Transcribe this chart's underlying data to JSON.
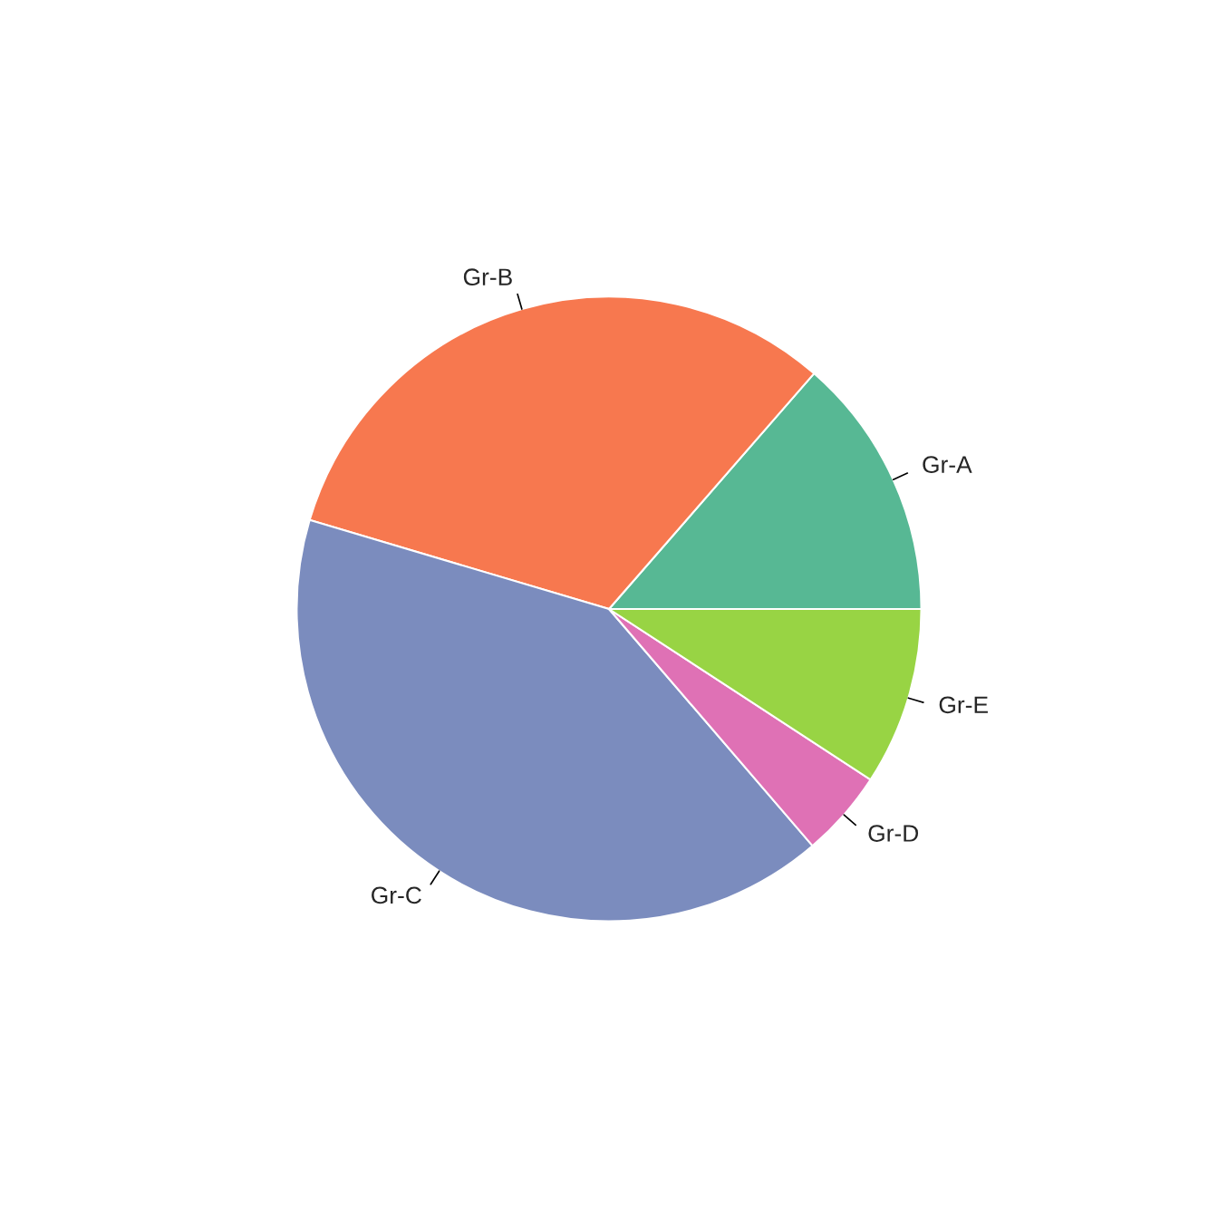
{
  "chart_data": {
    "type": "pie",
    "categories": [
      "Gr-A",
      "Gr-B",
      "Gr-C",
      "Gr-D",
      "Gr-E"
    ],
    "values": [
      13.6,
      31.8,
      40.9,
      4.5,
      9.2
    ],
    "colors": [
      "#57b894",
      "#f7784f",
      "#7b8cbe",
      "#df71b5",
      "#98d444"
    ]
  }
}
